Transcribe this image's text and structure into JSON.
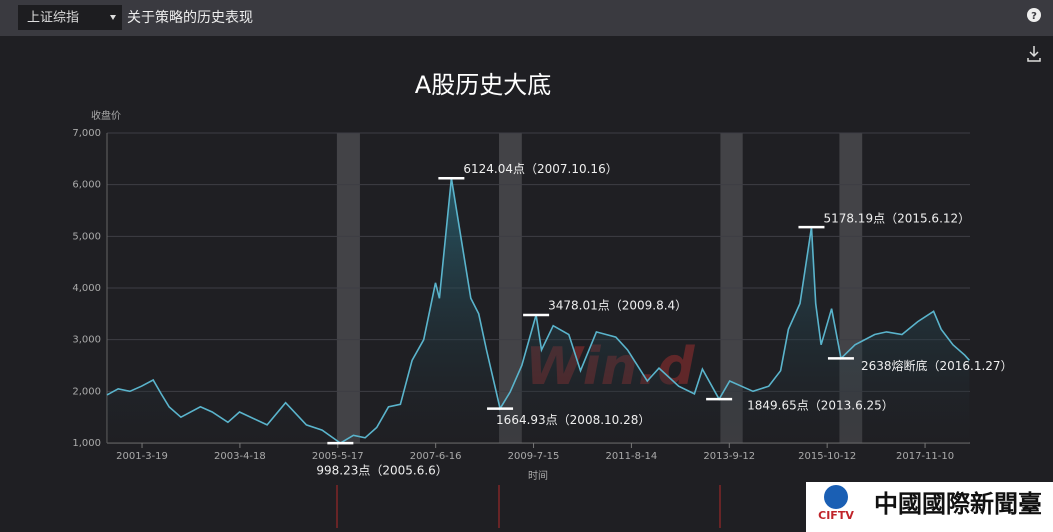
{
  "header": {
    "dropdown": "上证综指",
    "title": "关于策略的历史表现",
    "help": "?"
  },
  "chart_data": {
    "type": "line",
    "title": "A股历史大底",
    "ylabel": "收盘价",
    "xlabel": "时间",
    "color": "#5ab4cc",
    "grid": true,
    "xlim": [
      "2000-06-20",
      "2018-10-25"
    ],
    "xticks": [
      {
        "value": "2001-03-19",
        "label": "2001-3-19"
      },
      {
        "value": "2003-04-18",
        "label": "2003-4-18"
      },
      {
        "value": "2005-05-17",
        "label": "2005-5-17"
      },
      {
        "value": "2007-06-16",
        "label": "2007-6-16"
      },
      {
        "value": "2009-07-15",
        "label": "2009-7-15"
      },
      {
        "value": "2011-08-14",
        "label": "2011-8-14"
      },
      {
        "value": "2013-09-12",
        "label": "2013-9-12"
      },
      {
        "value": "2015-10-12",
        "label": "2015-10-12"
      },
      {
        "value": "2017-11-10",
        "label": "2017-11-10"
      }
    ],
    "ylim": [
      1000,
      7000
    ],
    "yticks": [
      {
        "value": 1000,
        "label": "1,000"
      },
      {
        "value": 2000,
        "label": "2,000"
      },
      {
        "value": 3000,
        "label": "3,000"
      },
      {
        "value": 4000,
        "label": "4,000"
      },
      {
        "value": 5000,
        "label": "5,000"
      },
      {
        "value": 6000,
        "label": "6,000"
      },
      {
        "value": 7000,
        "label": "7,000"
      }
    ],
    "bands": [
      {
        "start": "2005-05-10",
        "end": "2005-11-05"
      },
      {
        "start": "2008-10-20",
        "end": "2009-04-15"
      },
      {
        "start": "2013-07-05",
        "end": "2013-12-25"
      },
      {
        "start": "2016-01-15",
        "end": "2016-07-10"
      }
    ],
    "x": [
      "2000-06-20",
      "2000-09-15",
      "2000-12-15",
      "2001-03-15",
      "2001-06-14",
      "2001-08-15",
      "2001-10-15",
      "2002-01-15",
      "2002-06-15",
      "2002-09-15",
      "2003-01-15",
      "2003-04-15",
      "2003-11-15",
      "2004-04-07",
      "2004-09-15",
      "2005-01-15",
      "2005-06-06",
      "2005-09-15",
      "2005-12-15",
      "2006-03-15",
      "2006-06-15",
      "2006-09-15",
      "2006-12-15",
      "2007-03-15",
      "2007-06-15",
      "2007-07-15",
      "2007-10-16",
      "2007-12-15",
      "2008-03-15",
      "2008-05-15",
      "2008-07-15",
      "2008-10-28",
      "2009-01-15",
      "2009-04-15",
      "2009-08-04",
      "2009-09-15",
      "2009-12-15",
      "2010-04-15",
      "2010-07-15",
      "2010-11-15",
      "2011-04-15",
      "2011-07-15",
      "2011-12-15",
      "2012-03-15",
      "2012-08-15",
      "2012-12-15",
      "2013-02-15",
      "2013-06-25",
      "2013-09-15",
      "2013-12-15",
      "2014-03-15",
      "2014-07-15",
      "2014-10-15",
      "2014-12-15",
      "2015-03-15",
      "2015-06-12",
      "2015-07-15",
      "2015-08-26",
      "2015-11-15",
      "2016-01-27",
      "2016-05-15",
      "2016-10-15",
      "2017-01-15",
      "2017-05-15",
      "2017-09-15",
      "2018-01-15",
      "2018-03-15",
      "2018-06-15",
      "2018-09-15",
      "2018-10-20"
    ],
    "values": [
      1930,
      2050,
      2000,
      2100,
      2220,
      1950,
      1700,
      1500,
      1700,
      1600,
      1400,
      1600,
      1350,
      1780,
      1350,
      1250,
      998.23,
      1150,
      1100,
      1300,
      1700,
      1750,
      2600,
      3000,
      4100,
      3800,
      6124.04,
      5200,
      3800,
      3500,
      2800,
      1664.93,
      1990,
      2500,
      3478.01,
      2800,
      3270,
      3100,
      2400,
      3150,
      3050,
      2800,
      2200,
      2450,
      2100,
      1950,
      2430,
      1849.65,
      2200,
      2100,
      2000,
      2100,
      2400,
      3200,
      3700,
      5178.19,
      3700,
      2900,
      3600,
      2638,
      2900,
      3100,
      3150,
      3100,
      3350,
      3550,
      3200,
      2900,
      2700,
      2600
    ],
    "annotations": [
      {
        "text": "998.23点（2005.6.6）",
        "x": "2005-06-06",
        "y": 998.23
      },
      {
        "text": "6124.04点（2007.10.16）",
        "x": "2007-10-16",
        "y": 6124.04
      },
      {
        "text": "1664.93点（2008.10.28）",
        "x": "2008-10-28",
        "y": 1664.93
      },
      {
        "text": "3478.01点（2009.8.4）",
        "x": "2009-08-04",
        "y": 3478.01
      },
      {
        "text": "1849.65点（2013.6.25）",
        "x": "2013-06-25",
        "y": 1849.65
      },
      {
        "text": "5178.19点（2015.6.12）",
        "x": "2015-06-12",
        "y": 5178.19
      },
      {
        "text": "2638熔断底（2016.1.27）",
        "x": "2016-01-27",
        "y": 2638
      }
    ]
  },
  "watermark": "Win.d",
  "logo": {
    "mark": "CIFTV",
    "name": "中國國際新聞臺"
  }
}
